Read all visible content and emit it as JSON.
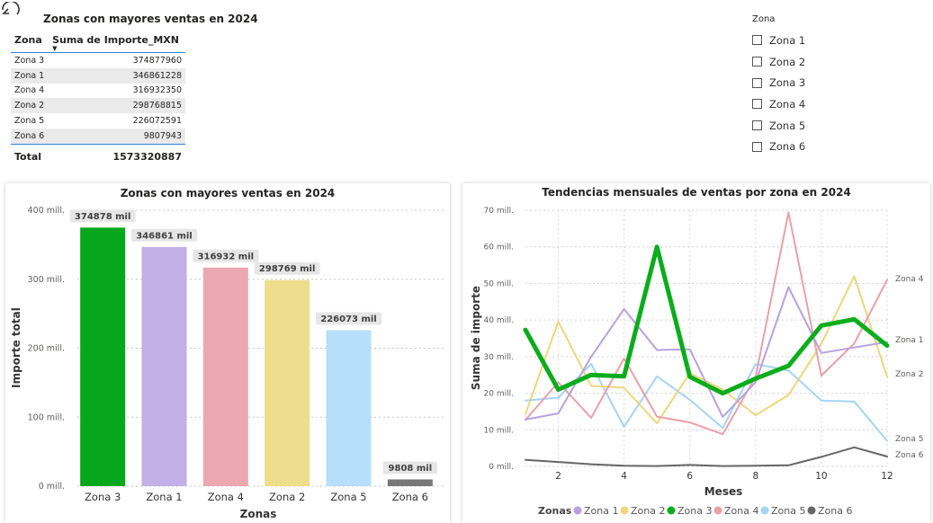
{
  "table": {
    "title": "Zonas con mayores ventas en 2024",
    "headers": {
      "zone": "Zona",
      "amount": "Suma de Importe_MXN",
      "sort_glyph": "▼"
    },
    "rows": [
      {
        "zone": "Zona 3",
        "amount": "374877960"
      },
      {
        "zone": "Zona 1",
        "amount": "346861228"
      },
      {
        "zone": "Zona 4",
        "amount": "316932350"
      },
      {
        "zone": "Zona 2",
        "amount": "298768815"
      },
      {
        "zone": "Zona 5",
        "amount": "226072591"
      },
      {
        "zone": "Zona 6",
        "amount": "9807943"
      }
    ],
    "total_label": "Total",
    "total_value": "1573320887"
  },
  "slicer": {
    "title": "Zona",
    "items": [
      "Zona 1",
      "Zona 2",
      "Zona 3",
      "Zona 4",
      "Zona 5",
      "Zona 6"
    ]
  },
  "colors": {
    "Zona 1": "#c3b0e6",
    "Zona 2": "#eedd8d",
    "Zona 3": "#07a71b",
    "Zona 4": "#eba8b0",
    "Zona 5": "#b7defa",
    "Zona 6": "#777777",
    "line": {
      "Zona 1": "#b6a1e0",
      "Zona 2": "#eed67a",
      "Zona 3": "#0aad1c",
      "Zona 4": "#eaa0a8",
      "Zona 5": "#a6d3f6",
      "Zona 6": "#666666"
    }
  },
  "chart_data": [
    {
      "type": "bar",
      "title": "Zonas con mayores ventas en 2024",
      "xlabel": "Zonas",
      "ylabel": "Importe total",
      "categories": [
        "Zona 3",
        "Zona 1",
        "Zona 4",
        "Zona 2",
        "Zona 5",
        "Zona 6"
      ],
      "values": [
        374878,
        346861,
        316932,
        298769,
        226073,
        9808
      ],
      "data_labels": [
        "374878 mil",
        "346861 mil",
        "316932 mil",
        "298769 mil",
        "226073 mil",
        "9808 mil"
      ],
      "ylim": [
        0,
        400000
      ],
      "yticks": [
        0,
        100000,
        200000,
        300000,
        400000
      ],
      "ytick_labels": [
        "0 mill.",
        "100 mill.",
        "200 mill.",
        "300 mill.",
        "400 mill."
      ],
      "grid": true
    },
    {
      "type": "line",
      "title": "Tendencias mensuales de ventas por zona en 2024",
      "xlabel": "Meses",
      "ylabel": "Suma de importe",
      "x": [
        1,
        2,
        3,
        4,
        5,
        6,
        7,
        8,
        9,
        10,
        11,
        12
      ],
      "xticks": [
        2,
        4,
        6,
        8,
        10,
        12
      ],
      "xlim": [
        1,
        12
      ],
      "ylim": [
        0,
        70
      ],
      "yticks": [
        0,
        10,
        20,
        30,
        40,
        50,
        60,
        70
      ],
      "ytick_labels": [
        "0 mill.",
        "10 mill.",
        "20 mill.",
        "30 mill.",
        "40 mill.",
        "50 mill.",
        "60 mill.",
        "70 mill."
      ],
      "legend_title": "Zonas",
      "legend_position": "bottom",
      "grid": true,
      "series": [
        {
          "name": "Zona 1",
          "values": [
            12.8,
            14.5,
            30,
            43,
            31.8,
            32,
            13.5,
            23,
            49,
            31,
            32.5,
            34
          ]
        },
        {
          "name": "Zona 2",
          "values": [
            14.3,
            39.6,
            22,
            21.5,
            11.8,
            25.5,
            21,
            14,
            19.5,
            33.5,
            52,
            24.5
          ]
        },
        {
          "name": "Zona 3",
          "values": [
            37.3,
            21,
            25,
            24.6,
            60,
            24.5,
            20,
            24,
            27.5,
            38.5,
            40.2,
            33
          ]
        },
        {
          "name": "Zona 4",
          "values": [
            12.7,
            23,
            13.3,
            29.5,
            13.6,
            12,
            8.8,
            24.5,
            69.4,
            24.8,
            33.6,
            51
          ]
        },
        {
          "name": "Zona 5",
          "values": [
            18,
            18.8,
            28,
            10.8,
            24.6,
            18.2,
            10.5,
            28,
            26.2,
            18,
            17.7,
            7
          ]
        },
        {
          "name": "Zona 6",
          "values": [
            1.8,
            1.2,
            0.6,
            0.2,
            0.1,
            0.4,
            0.1,
            0.2,
            0.3,
            2.6,
            5.2,
            2.7
          ]
        }
      ],
      "end_labels": [
        "Zona 4",
        "Zona 1",
        "Zona 2",
        "Zona 5",
        "Zona 6"
      ]
    }
  ]
}
